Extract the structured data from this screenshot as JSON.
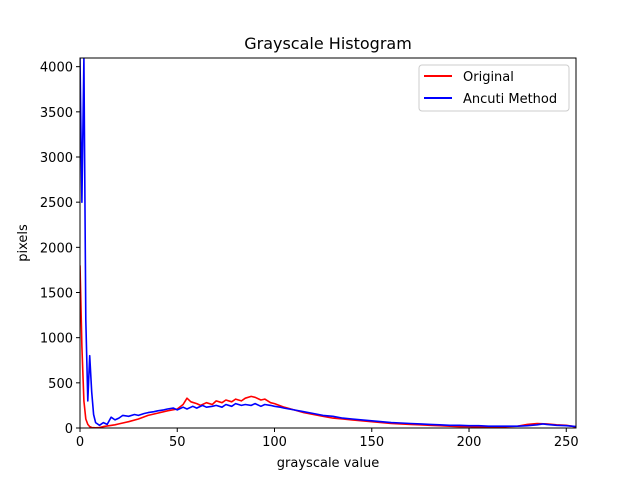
{
  "chart_data": {
    "type": "line",
    "title": "Grayscale Histogram",
    "xlabel": "grayscale value",
    "ylabel": "pixels",
    "xlim": [
      0,
      255
    ],
    "ylim": [
      0,
      4096
    ],
    "xticks": [
      0,
      50,
      100,
      150,
      200,
      250
    ],
    "yticks": [
      0,
      500,
      1000,
      1500,
      2000,
      2500,
      3000,
      3500,
      4000
    ],
    "grid": false,
    "legend_position": "upper right",
    "series": [
      {
        "name": "Original",
        "color": "#ff0000",
        "x": [
          0,
          1,
          2,
          3,
          4,
          5,
          6,
          8,
          10,
          12,
          15,
          18,
          20,
          25,
          30,
          35,
          40,
          45,
          50,
          53,
          55,
          57,
          60,
          62,
          65,
          68,
          70,
          73,
          75,
          78,
          80,
          83,
          85,
          88,
          90,
          93,
          95,
          98,
          100,
          105,
          110,
          115,
          120,
          125,
          130,
          135,
          140,
          145,
          150,
          155,
          160,
          165,
          170,
          175,
          180,
          185,
          190,
          195,
          200,
          205,
          210,
          215,
          220,
          225,
          230,
          235,
          240,
          245,
          250,
          253,
          255
        ],
        "y": [
          1800,
          900,
          300,
          100,
          40,
          15,
          5,
          2,
          5,
          15,
          25,
          35,
          45,
          70,
          100,
          140,
          165,
          190,
          210,
          260,
          330,
          290,
          270,
          250,
          280,
          260,
          300,
          280,
          310,
          290,
          320,
          300,
          330,
          350,
          340,
          310,
          320,
          280,
          270,
          230,
          200,
          170,
          150,
          130,
          110,
          100,
          90,
          80,
          70,
          60,
          50,
          45,
          40,
          35,
          30,
          25,
          20,
          15,
          15,
          10,
          10,
          10,
          15,
          20,
          40,
          50,
          45,
          35,
          30,
          20,
          10
        ]
      },
      {
        "name": "Ancuti Method",
        "color": "#0000ff",
        "x": [
          0,
          1,
          2,
          3,
          4,
          5,
          6,
          7,
          8,
          10,
          12,
          14,
          16,
          18,
          20,
          22,
          25,
          28,
          30,
          33,
          35,
          38,
          40,
          43,
          45,
          48,
          50,
          53,
          55,
          58,
          60,
          63,
          65,
          68,
          70,
          73,
          75,
          78,
          80,
          83,
          85,
          88,
          90,
          93,
          95,
          98,
          100,
          103,
          105,
          110,
          115,
          120,
          125,
          130,
          135,
          140,
          145,
          150,
          155,
          160,
          165,
          170,
          175,
          180,
          185,
          190,
          195,
          200,
          205,
          210,
          215,
          220,
          225,
          230,
          235,
          238,
          240,
          245,
          250,
          253,
          255
        ],
        "y": [
          4096,
          2500,
          4096,
          1200,
          300,
          800,
          400,
          150,
          60,
          30,
          60,
          40,
          120,
          90,
          110,
          140,
          130,
          150,
          140,
          160,
          170,
          180,
          190,
          200,
          210,
          220,
          200,
          230,
          210,
          240,
          220,
          250,
          230,
          240,
          250,
          230,
          260,
          240,
          270,
          250,
          260,
          250,
          270,
          240,
          260,
          250,
          240,
          230,
          220,
          200,
          180,
          160,
          140,
          130,
          110,
          100,
          90,
          80,
          70,
          60,
          55,
          50,
          45,
          40,
          35,
          30,
          30,
          25,
          25,
          20,
          20,
          20,
          20,
          25,
          35,
          45,
          40,
          30,
          25,
          20,
          15
        ]
      }
    ]
  }
}
